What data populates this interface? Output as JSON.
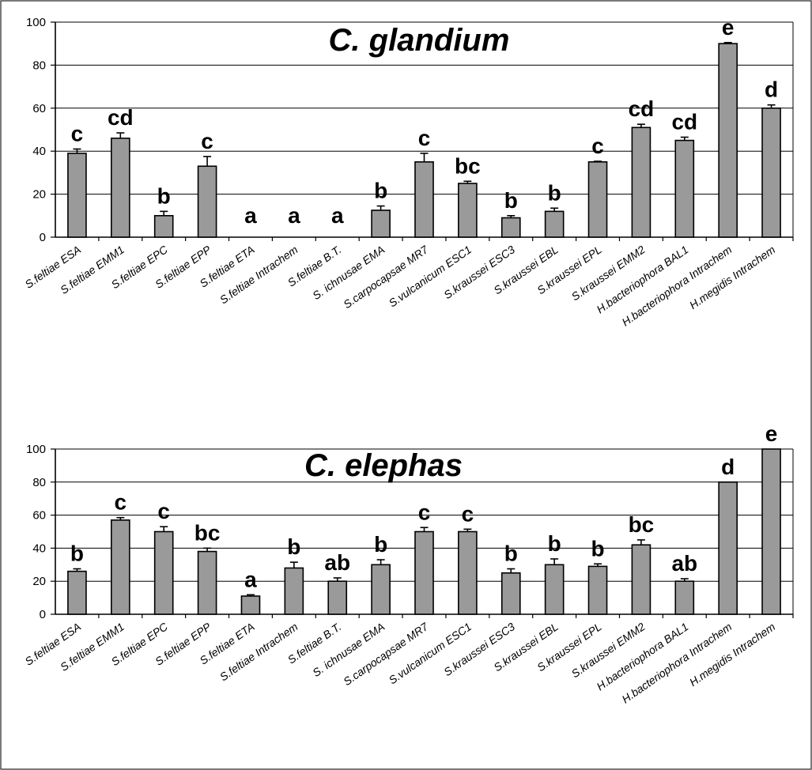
{
  "chart_data": [
    {
      "type": "bar",
      "title": "C. glandium",
      "xlabel": "",
      "ylabel": "",
      "ylim": [
        0,
        100
      ],
      "yticks": [
        0,
        20,
        40,
        60,
        80,
        100
      ],
      "grid": true,
      "bar_color": "#9a9a9a",
      "categories": [
        "S.feltiae ESA",
        "S.feltiae EMM1",
        "S.feltiae EPC",
        "S.feltiae EPP",
        "S.feltiae ETA",
        "S.feltiae Intrachem",
        "S.feltiae B.T.",
        "S. ichnusae EMA",
        "S.carpocapsae MR7",
        "S.vulcanicum ESC1",
        "S.kraussei ESC3",
        "S.kraussei EBL",
        "S.kraussei EPL",
        "S.kraussei EMM2",
        "H.bacteriophora BAL1",
        "H.bacteriophora Intrachem",
        "H.megidis Intrachem"
      ],
      "values": [
        39,
        46,
        10,
        33,
        0,
        0,
        0,
        12.5,
        35,
        25,
        9,
        12,
        35,
        51,
        45,
        90,
        60
      ],
      "errors": [
        2,
        2.5,
        2,
        4.5,
        0,
        0,
        0,
        2,
        4,
        1,
        1,
        1.5,
        0.3,
        1.5,
        1.5,
        0.5,
        1.5
      ],
      "letters": [
        "c",
        "cd",
        "b",
        "c",
        "a",
        "a",
        "a",
        "b",
        "c",
        "bc",
        "b",
        "b",
        "c",
        "cd",
        "cd",
        "e",
        "d"
      ]
    },
    {
      "type": "bar",
      "title": "C. elephas",
      "xlabel": "",
      "ylabel": "",
      "ylim": [
        0,
        100
      ],
      "yticks": [
        0,
        20,
        40,
        60,
        80,
        100
      ],
      "grid": true,
      "bar_color": "#9a9a9a",
      "categories": [
        "S.feltiae ESA",
        "S.feltiae EMM1",
        "S.feltiae EPC",
        "S.feltiae EPP",
        "S.feltiae ETA",
        "S.feltiae Intrachem",
        "S.feltiae B.T.",
        "S. ichnusae EMA",
        "S.carpocapsae MR7",
        "S.vulcanicum ESC1",
        "S.kraussei ESC3",
        "S.kraussei EBL",
        "S.kraussei EPL",
        "S.kraussei EMM2",
        "H.bacteriophora BAL1",
        "H.bacteriophora Intrachem",
        "H.megidis Intrachem"
      ],
      "values": [
        26,
        57,
        50,
        38,
        11,
        28,
        20,
        30,
        50,
        50,
        25,
        30,
        29,
        42,
        20,
        80,
        100
      ],
      "errors": [
        1.5,
        1.5,
        3,
        2,
        0.8,
        3.5,
        2,
        3,
        2.5,
        1.5,
        2.5,
        3.5,
        1.5,
        3,
        1.5,
        0,
        0
      ],
      "letters": [
        "b",
        "c",
        "c",
        "bc",
        "a",
        "b",
        "ab",
        "b",
        "c",
        "c",
        "b",
        "b",
        "b",
        "bc",
        "ab",
        "d",
        "e"
      ]
    }
  ]
}
